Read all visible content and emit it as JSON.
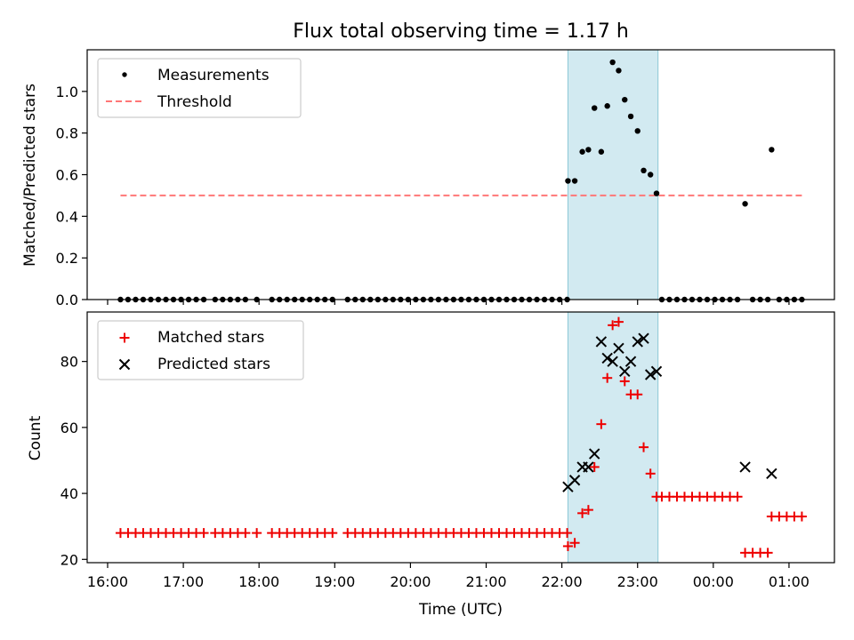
{
  "colors": {
    "measurement": "#000000",
    "threshold": "#ff7777",
    "matched": "#ee0000",
    "predicted": "#000000",
    "shade": "#add8e6"
  },
  "chart_data": [
    {
      "type": "scatter",
      "panel": "top",
      "title": "Flux total observing time = 1.17 h",
      "xlabel": "",
      "ylabel": "Matched/Predicted stars",
      "xlim": [
        15.73,
        25.6
      ],
      "ylim": [
        0,
        1.2
      ],
      "yticks": [
        0,
        0.2,
        0.4,
        0.6,
        0.8,
        1.0
      ],
      "ytick_labels": [
        "0.0",
        "0.2",
        "0.4",
        "0.6",
        "0.8",
        "1.0"
      ],
      "shaded_x_range": [
        22.08,
        23.27
      ],
      "legend": {
        "position": "upper left",
        "entries": [
          "Measurements",
          "Threshold"
        ]
      },
      "series": [
        {
          "name": "Measurements",
          "marker": "dot",
          "x": [
            16.17,
            16.27,
            16.37,
            16.47,
            16.57,
            16.67,
            16.77,
            16.87,
            16.97,
            17.07,
            17.17,
            17.27,
            17.42,
            17.52,
            17.62,
            17.72,
            17.82,
            17.97,
            18.17,
            18.27,
            18.37,
            18.47,
            18.57,
            18.67,
            18.77,
            18.87,
            18.97,
            19.17,
            19.27,
            19.37,
            19.47,
            19.57,
            19.67,
            19.77,
            19.87,
            19.97,
            20.07,
            20.17,
            20.27,
            20.37,
            20.47,
            20.57,
            20.67,
            20.77,
            20.87,
            20.97,
            21.07,
            21.17,
            21.27,
            21.37,
            21.47,
            21.57,
            21.67,
            21.77,
            21.87,
            21.97,
            22.07,
            22.08,
            22.17,
            22.27,
            22.35,
            22.43,
            22.52,
            22.6,
            22.67,
            22.75,
            22.83,
            22.91,
            23.0,
            23.08,
            23.17,
            23.25,
            23.32,
            23.42,
            23.52,
            23.62,
            23.72,
            23.82,
            23.92,
            24.02,
            24.12,
            24.22,
            24.32,
            24.42,
            24.52,
            24.62,
            24.72,
            24.77,
            24.87,
            24.97,
            25.07,
            25.17
          ],
          "y": [
            0,
            0,
            0,
            0,
            0,
            0,
            0,
            0,
            0,
            0,
            0,
            0,
            0,
            0,
            0,
            0,
            0,
            0,
            0,
            0,
            0,
            0,
            0,
            0,
            0,
            0,
            0,
            0,
            0,
            0,
            0,
            0,
            0,
            0,
            0,
            0,
            0,
            0,
            0,
            0,
            0,
            0,
            0,
            0,
            0,
            0,
            0,
            0,
            0,
            0,
            0,
            0,
            0,
            0,
            0,
            0,
            0,
            0.57,
            0.57,
            0.71,
            0.72,
            0.92,
            0.71,
            0.93,
            1.14,
            1.1,
            0.96,
            0.88,
            0.81,
            0.62,
            0.6,
            0.51,
            0,
            0,
            0,
            0,
            0,
            0,
            0,
            0,
            0,
            0,
            0,
            0.46,
            0,
            0,
            0,
            0.72,
            0,
            0,
            0,
            0
          ]
        },
        {
          "name": "Threshold",
          "style": "dashed",
          "x": [
            16.17,
            25.17
          ],
          "y": [
            0.5,
            0.5
          ]
        }
      ]
    },
    {
      "type": "scatter",
      "panel": "bottom",
      "title": "",
      "xlabel": "Time (UTC)",
      "ylabel": "Count",
      "xlim": [
        15.73,
        25.6
      ],
      "ylim": [
        19,
        95
      ],
      "yticks": [
        20,
        40,
        60,
        80
      ],
      "ytick_labels": [
        "20",
        "40",
        "60",
        "80"
      ],
      "xticks": [
        16,
        17,
        18,
        19,
        20,
        21,
        22,
        23,
        24,
        25
      ],
      "xtick_labels": [
        "16:00",
        "17:00",
        "18:00",
        "19:00",
        "20:00",
        "21:00",
        "22:00",
        "23:00",
        "00:00",
        "01:00"
      ],
      "shaded_x_range": [
        22.08,
        23.27
      ],
      "legend": {
        "position": "upper left",
        "entries": [
          "Matched stars",
          "Predicted stars"
        ]
      },
      "series": [
        {
          "name": "Matched stars",
          "marker": "plus",
          "x": [
            16.17,
            16.27,
            16.37,
            16.47,
            16.57,
            16.67,
            16.77,
            16.87,
            16.97,
            17.07,
            17.17,
            17.27,
            17.42,
            17.52,
            17.62,
            17.72,
            17.82,
            17.97,
            18.17,
            18.27,
            18.37,
            18.47,
            18.57,
            18.67,
            18.77,
            18.87,
            18.97,
            19.17,
            19.27,
            19.37,
            19.47,
            19.57,
            19.67,
            19.77,
            19.87,
            19.97,
            20.07,
            20.17,
            20.27,
            20.37,
            20.47,
            20.57,
            20.67,
            20.77,
            20.87,
            20.97,
            21.07,
            21.17,
            21.27,
            21.37,
            21.47,
            21.57,
            21.67,
            21.77,
            21.87,
            21.97,
            22.07,
            22.08,
            22.17,
            22.27,
            22.35,
            22.43,
            22.52,
            22.6,
            22.67,
            22.75,
            22.83,
            22.91,
            23.0,
            23.08,
            23.17,
            23.25,
            23.32,
            23.42,
            23.52,
            23.62,
            23.72,
            23.82,
            23.92,
            24.02,
            24.12,
            24.22,
            24.32,
            24.42,
            24.52,
            24.62,
            24.72,
            24.77,
            24.87,
            24.97,
            25.07,
            25.17
          ],
          "y": [
            28,
            28,
            28,
            28,
            28,
            28,
            28,
            28,
            28,
            28,
            28,
            28,
            28,
            28,
            28,
            28,
            28,
            28,
            28,
            28,
            28,
            28,
            28,
            28,
            28,
            28,
            28,
            28,
            28,
            28,
            28,
            28,
            28,
            28,
            28,
            28,
            28,
            28,
            28,
            28,
            28,
            28,
            28,
            28,
            28,
            28,
            28,
            28,
            28,
            28,
            28,
            28,
            28,
            28,
            28,
            28,
            28,
            24,
            25,
            34,
            35,
            48,
            61,
            75,
            91,
            92,
            74,
            70,
            70,
            54,
            46,
            39,
            39,
            39,
            39,
            39,
            39,
            39,
            39,
            39,
            39,
            39,
            39,
            22,
            22,
            22,
            22,
            33,
            33,
            33,
            33,
            33
          ]
        },
        {
          "name": "Predicted stars",
          "marker": "x",
          "x": [
            22.08,
            22.17,
            22.27,
            22.35,
            22.43,
            22.52,
            22.6,
            22.67,
            22.75,
            22.83,
            22.91,
            23.0,
            23.08,
            23.17,
            23.25,
            24.42,
            24.77
          ],
          "y": [
            42,
            44,
            48,
            48,
            52,
            86,
            81,
            80,
            84,
            77,
            80,
            86,
            87,
            76,
            77,
            48,
            46
          ]
        }
      ]
    }
  ]
}
